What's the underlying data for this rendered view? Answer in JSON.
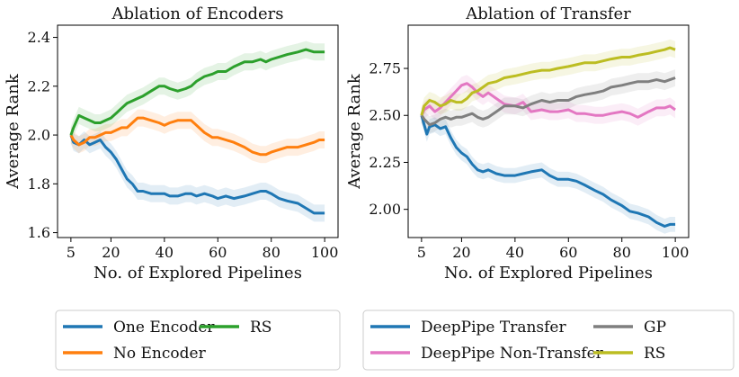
{
  "chart_data": [
    {
      "type": "line",
      "title": "Ablation of Encoders",
      "xlabel": "No. of Explored Pipelines",
      "ylabel": "Average Rank",
      "xlim": [
        0,
        105
      ],
      "ylim": [
        1.58,
        2.45
      ],
      "xticks": [
        5,
        20,
        40,
        60,
        80,
        100
      ],
      "yticks": [
        1.6,
        1.8,
        2.0,
        2.2,
        2.4
      ],
      "ytick_labels": [
        "1.6",
        "1.8",
        "2.0",
        "2.2",
        "2.4"
      ],
      "legend": {
        "placement": "below",
        "columns": 2
      },
      "series": [
        {
          "name": "One Encoder",
          "color": "#1f77b4",
          "band": 0.035,
          "x": [
            5,
            6,
            8,
            10,
            12,
            14,
            16,
            18,
            20,
            22,
            24,
            26,
            28,
            30,
            32,
            35,
            38,
            40,
            42,
            45,
            48,
            50,
            52,
            55,
            58,
            60,
            63,
            66,
            70,
            73,
            76,
            78,
            80,
            83,
            86,
            90,
            93,
            96,
            98,
            100
          ],
          "y": [
            2.0,
            1.97,
            1.96,
            1.98,
            1.96,
            1.97,
            1.98,
            1.95,
            1.93,
            1.9,
            1.86,
            1.82,
            1.8,
            1.77,
            1.77,
            1.76,
            1.76,
            1.76,
            1.75,
            1.75,
            1.76,
            1.76,
            1.75,
            1.76,
            1.75,
            1.74,
            1.75,
            1.74,
            1.75,
            1.76,
            1.77,
            1.77,
            1.76,
            1.74,
            1.73,
            1.72,
            1.7,
            1.68,
            1.68,
            1.68
          ]
        },
        {
          "name": "No Encoder",
          "color": "#ff7f0e",
          "band": 0.035,
          "x": [
            5,
            6,
            8,
            10,
            12,
            14,
            16,
            18,
            20,
            22,
            24,
            26,
            28,
            30,
            32,
            35,
            38,
            40,
            42,
            45,
            48,
            50,
            52,
            55,
            58,
            60,
            63,
            66,
            70,
            73,
            76,
            78,
            80,
            83,
            86,
            90,
            93,
            96,
            98,
            100
          ],
          "y": [
            2.0,
            1.98,
            1.96,
            1.97,
            1.99,
            1.99,
            2.0,
            2.01,
            2.01,
            2.02,
            2.03,
            2.03,
            2.05,
            2.07,
            2.07,
            2.06,
            2.05,
            2.04,
            2.05,
            2.06,
            2.06,
            2.06,
            2.04,
            2.01,
            1.99,
            1.99,
            1.98,
            1.97,
            1.95,
            1.93,
            1.92,
            1.92,
            1.93,
            1.94,
            1.95,
            1.95,
            1.96,
            1.97,
            1.98,
            1.98
          ]
        },
        {
          "name": "RS",
          "color": "#2ca02c",
          "band": 0.035,
          "x": [
            5,
            6,
            8,
            10,
            12,
            14,
            16,
            18,
            20,
            22,
            24,
            26,
            28,
            30,
            32,
            35,
            38,
            40,
            42,
            45,
            48,
            50,
            52,
            55,
            58,
            60,
            63,
            66,
            70,
            73,
            76,
            78,
            80,
            83,
            86,
            90,
            93,
            96,
            98,
            100
          ],
          "y": [
            2.0,
            2.03,
            2.08,
            2.07,
            2.06,
            2.05,
            2.05,
            2.06,
            2.07,
            2.09,
            2.11,
            2.13,
            2.14,
            2.15,
            2.16,
            2.18,
            2.2,
            2.2,
            2.19,
            2.18,
            2.19,
            2.2,
            2.22,
            2.24,
            2.25,
            2.26,
            2.26,
            2.28,
            2.3,
            2.3,
            2.31,
            2.3,
            2.31,
            2.32,
            2.33,
            2.34,
            2.35,
            2.34,
            2.34,
            2.34
          ]
        }
      ]
    },
    {
      "type": "line",
      "title": "Ablation of Transfer",
      "xlabel": "No. of Explored Pipelines",
      "ylabel": "Average Rank",
      "xlim": [
        0,
        105
      ],
      "ylim": [
        1.85,
        2.98
      ],
      "xticks": [
        5,
        20,
        40,
        60,
        80,
        100
      ],
      "yticks": [
        2.0,
        2.25,
        2.5,
        2.75
      ],
      "ytick_labels": [
        "2.00",
        "2.25",
        "2.50",
        "2.75"
      ],
      "legend": {
        "placement": "below",
        "columns": 2
      },
      "series": [
        {
          "name": "DeepPipe Transfer",
          "color": "#1f77b4",
          "band": 0.04,
          "x": [
            5,
            6,
            7,
            8,
            10,
            12,
            14,
            16,
            18,
            20,
            22,
            24,
            26,
            28,
            30,
            33,
            36,
            40,
            43,
            46,
            50,
            53,
            56,
            60,
            63,
            66,
            70,
            73,
            76,
            80,
            83,
            86,
            90,
            93,
            96,
            98,
            100
          ],
          "y": [
            2.5,
            2.45,
            2.4,
            2.44,
            2.45,
            2.43,
            2.44,
            2.38,
            2.33,
            2.3,
            2.28,
            2.24,
            2.21,
            2.2,
            2.21,
            2.19,
            2.18,
            2.18,
            2.19,
            2.2,
            2.21,
            2.18,
            2.16,
            2.16,
            2.15,
            2.13,
            2.1,
            2.08,
            2.05,
            2.02,
            1.99,
            1.98,
            1.96,
            1.93,
            1.91,
            1.92,
            1.92
          ]
        },
        {
          "name": "DeepPipe Non-Transfer",
          "color": "#e377c2",
          "band": 0.045,
          "x": [
            5,
            6,
            8,
            10,
            12,
            14,
            16,
            18,
            20,
            22,
            24,
            26,
            28,
            30,
            33,
            36,
            40,
            43,
            46,
            50,
            53,
            56,
            60,
            63,
            66,
            70,
            73,
            76,
            80,
            83,
            86,
            90,
            93,
            96,
            98,
            100
          ],
          "y": [
            2.5,
            2.53,
            2.55,
            2.52,
            2.54,
            2.57,
            2.6,
            2.63,
            2.66,
            2.67,
            2.65,
            2.62,
            2.6,
            2.62,
            2.59,
            2.56,
            2.55,
            2.57,
            2.52,
            2.53,
            2.52,
            2.52,
            2.53,
            2.51,
            2.51,
            2.5,
            2.5,
            2.51,
            2.52,
            2.51,
            2.49,
            2.52,
            2.54,
            2.54,
            2.55,
            2.53
          ]
        },
        {
          "name": "GP",
          "color": "#7f7f7f",
          "band": 0.045,
          "x": [
            5,
            6,
            8,
            10,
            12,
            14,
            16,
            18,
            20,
            22,
            24,
            26,
            28,
            30,
            33,
            36,
            40,
            43,
            46,
            50,
            53,
            56,
            60,
            63,
            66,
            70,
            73,
            76,
            80,
            83,
            86,
            90,
            93,
            96,
            98,
            100
          ],
          "y": [
            2.5,
            2.48,
            2.45,
            2.46,
            2.48,
            2.49,
            2.48,
            2.49,
            2.49,
            2.5,
            2.51,
            2.49,
            2.48,
            2.49,
            2.52,
            2.55,
            2.55,
            2.54,
            2.56,
            2.58,
            2.57,
            2.58,
            2.58,
            2.6,
            2.61,
            2.62,
            2.63,
            2.65,
            2.66,
            2.67,
            2.68,
            2.68,
            2.69,
            2.68,
            2.69,
            2.7
          ]
        },
        {
          "name": "RS",
          "color": "#bcbd22",
          "band": 0.045,
          "x": [
            5,
            6,
            8,
            10,
            12,
            14,
            16,
            18,
            20,
            22,
            24,
            26,
            28,
            30,
            33,
            36,
            40,
            43,
            46,
            50,
            53,
            56,
            60,
            63,
            66,
            70,
            73,
            76,
            80,
            83,
            86,
            90,
            93,
            96,
            98,
            100
          ],
          "y": [
            2.5,
            2.55,
            2.58,
            2.57,
            2.55,
            2.56,
            2.58,
            2.57,
            2.57,
            2.59,
            2.62,
            2.63,
            2.65,
            2.67,
            2.68,
            2.7,
            2.71,
            2.72,
            2.73,
            2.74,
            2.74,
            2.75,
            2.76,
            2.77,
            2.78,
            2.78,
            2.79,
            2.8,
            2.81,
            2.81,
            2.82,
            2.83,
            2.84,
            2.85,
            2.86,
            2.85
          ]
        }
      ]
    }
  ]
}
